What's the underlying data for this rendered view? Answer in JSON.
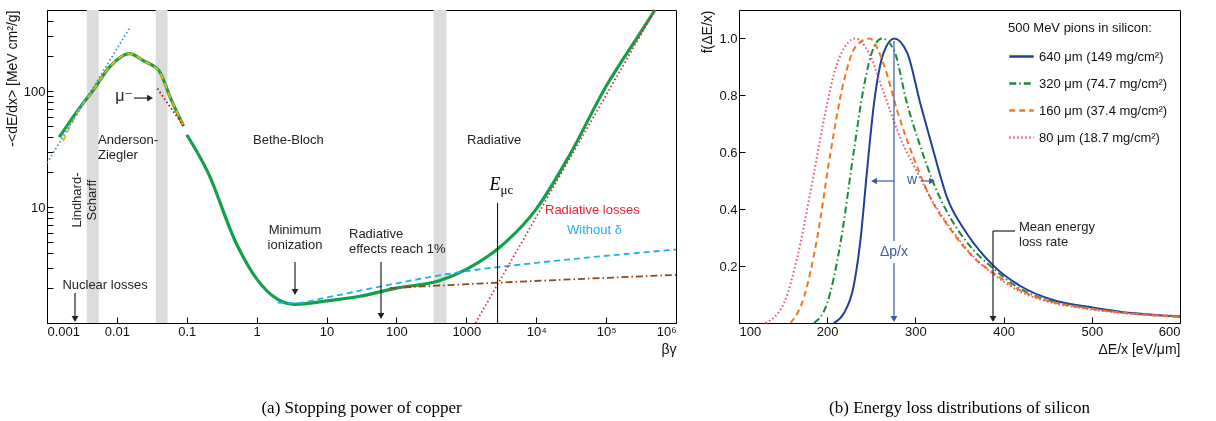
{
  "chart_data": [
    {
      "type": "line",
      "title": "(a) Stopping power of copper",
      "xlabel": "βγ",
      "ylabel": "-<dE/dx> [MeV cm²/g]",
      "log": "xy",
      "xlim": [
        0.001,
        1000000
      ],
      "ylim": [
        1,
        500
      ],
      "xticks": [
        0.001,
        0.01,
        0.1,
        1,
        10,
        100,
        1000,
        {
          "value": 10000,
          "label": "10⁴"
        },
        {
          "value": 100000,
          "label": "10⁵"
        },
        {
          "value": 1000000,
          "label": "10⁶"
        }
      ],
      "yticks": [
        {
          "value": 2,
          "label": null
        },
        {
          "value": 3,
          "label": null
        },
        {
          "value": 4,
          "label": null
        },
        {
          "value": 5,
          "label": null
        },
        {
          "value": 6,
          "label": null
        },
        {
          "value": 7,
          "label": null
        },
        {
          "value": 8,
          "label": null
        },
        {
          "value": 9,
          "label": null
        },
        10,
        {
          "value": 20,
          "label": null
        },
        {
          "value": 30,
          "label": null
        },
        {
          "value": 40,
          "label": null
        },
        {
          "value": 50,
          "label": null
        },
        {
          "value": 60,
          "label": null
        },
        {
          "value": 70,
          "label": null
        },
        {
          "value": 80,
          "label": null
        },
        {
          "value": 90,
          "label": null
        },
        100,
        {
          "value": 200,
          "label": null
        },
        {
          "value": 300,
          "label": null
        },
        {
          "value": 400,
          "label": null
        }
      ],
      "grid": false,
      "legend": false,
      "series": [
        {
          "color": "#13a04a",
          "line_style": "solid",
          "x": [
            0.0015,
            0.003,
            0.0045,
            0.008,
            0.015,
            0.025,
            0.04,
            0.06,
            0.09
          ],
          "values": [
            40,
            73,
            100,
            163,
            210,
            180,
            150,
            84,
            50
          ]
        },
        {
          "color": "#13a04a",
          "line_style": "solid",
          "x": [
            0.1,
            0.2,
            0.5,
            1,
            2,
            3.5,
            10,
            30,
            100,
            400,
            1000,
            3000,
            10000,
            30000,
            100000,
            300000,
            500000
          ],
          "values": [
            42,
            20,
            5,
            2.4,
            1.6,
            1.45,
            1.55,
            1.7,
            2.0,
            2.3,
            2.9,
            4.5,
            9.6,
            28,
            110,
            310,
            500
          ]
        },
        {
          "color": "#f5b400",
          "line_style": "dashed",
          "x": [
            0.0017,
            0.003,
            0.0045,
            0.008,
            0.015,
            0.025,
            0.04,
            0.06,
            0.09
          ],
          "values": [
            37,
            72,
            100,
            163,
            210,
            180,
            148,
            84,
            50
          ]
        },
        {
          "color": "#3d8fd0",
          "line_style": "dotted",
          "x": [
            0.001,
            0.015
          ],
          "values": [
            24,
            345
          ]
        },
        {
          "color": "#a01818",
          "line_style": "dotted",
          "x": [
            0.038,
            0.094
          ],
          "values": [
            105,
            48
          ]
        },
        {
          "name": "Without δ",
          "color": "#1ab0ee",
          "line_style": "dashed",
          "x": [
            2,
            3.5,
            10,
            100,
            1000,
            10000,
            1000000
          ],
          "values": [
            1.5,
            1.48,
            1.66,
            2.2,
            2.8,
            3.3,
            4.3
          ]
        },
        {
          "color": "#8b4a1c",
          "line_style": "dashdot",
          "x": [
            80,
            1000,
            1000000
          ],
          "values": [
            2.0,
            2.16,
            2.6
          ]
        },
        {
          "name": "Radiative losses",
          "color": "#ee2233",
          "line_style": "dotted",
          "x": [
            1350,
            500000
          ],
          "values": [
            1,
            500
          ]
        }
      ],
      "ref_lines": [
        {
          "axis": "x",
          "value": 2800,
          "label": "E$_{μc}$",
          "color": "#000000"
        }
      ],
      "bands": [
        {
          "axis": "x",
          "from": 0.0037,
          "to": 0.0055,
          "color": "#dcdcdc"
        },
        {
          "axis": "x",
          "from": 0.036,
          "to": 0.053,
          "color": "#dcdcdc"
        },
        {
          "axis": "x",
          "from": 340,
          "to": 520,
          "color": "#dcdcdc"
        }
      ],
      "annotations": [
        "Lindhard-\nScharff",
        "Anderson-\nZiegler",
        "Bethe-Bloch",
        "Radiative",
        "Nuclear losses",
        "Minimum\nionization",
        "Radiative\neffects reach 1%",
        {
          "text": "μ⁻",
          "x": 0.034,
          "y": 87
        }
      ]
    },
    {
      "type": "line",
      "title": "(b) Energy loss distributions of silicon",
      "xlabel": "ΔE/x [eV/μm]",
      "ylabel": "f(ΔE/x)",
      "xlim": [
        100,
        600
      ],
      "ylim": [
        0,
        1.1
      ],
      "xticks": [
        100,
        200,
        300,
        400,
        500,
        600
      ],
      "yticks": [
        0.2,
        0.4,
        0.6,
        0.8,
        {
          "value": 1,
          "label": "1.0"
        }
      ],
      "grid": false,
      "legend": "top right",
      "legend_title": "500 MeV pions in silicon:",
      "series": [
        {
          "name": "640 μm (149 mg/cm²)",
          "color": "#1f3f99",
          "line_style": "solid",
          "x": [
            207.5,
            219,
            230,
            238,
            245,
            253,
            264,
            276,
            290.6,
            305.7,
            320.8,
            336,
            355,
            389,
            419,
            457,
            494,
            532,
            600
          ],
          "values": [
            0,
            0.035,
            0.13,
            0.3,
            0.53,
            0.77,
            0.95,
            1.0,
            0.95,
            0.77,
            0.6,
            0.44,
            0.33,
            0.2,
            0.13,
            0.08,
            0.058,
            0.04,
            0.023
          ]
        },
        {
          "name": "320 μm (74.7 mg/cm²)",
          "color": "#1a8a3a",
          "line_style": "dashdot",
          "x": [
            185,
            200,
            215,
            230,
            241.5,
            253,
            262,
            275.5,
            290.6,
            305.7,
            320.8,
            339.6,
            362,
            389,
            419,
            457,
            494,
            532,
            600
          ],
          "values": [
            0,
            0.07,
            0.28,
            0.6,
            0.83,
            0.97,
            1.0,
            0.96,
            0.77,
            0.62,
            0.49,
            0.37,
            0.27,
            0.19,
            0.12,
            0.075,
            0.055,
            0.038,
            0.022
          ]
        },
        {
          "name": "160 μm (37.4 mg/cm²)",
          "color": "#f07820",
          "line_style": "dashed",
          "x": [
            158.5,
            173.6,
            188.7,
            203.8,
            218.9,
            232,
            248,
            264,
            279,
            298,
            317,
            339.6,
            366,
            389,
            419,
            457,
            494,
            532,
            600
          ],
          "values": [
            0,
            0.09,
            0.3,
            0.6,
            0.85,
            0.97,
            1.0,
            0.91,
            0.75,
            0.58,
            0.44,
            0.33,
            0.23,
            0.175,
            0.115,
            0.072,
            0.052,
            0.037,
            0.021
          ]
        },
        {
          "name": "80 μm (18.7 mg/cm²)",
          "color": "#f0506a",
          "line_style": "dotted",
          "x": [
            130,
            151,
            166,
            181,
            196,
            211,
            232,
            247,
            264,
            283,
            302,
            321,
            343,
            370,
            389,
            419,
            457,
            494,
            532,
            600
          ],
          "values": [
            0,
            0.07,
            0.23,
            0.46,
            0.71,
            0.91,
            1.0,
            0.95,
            0.81,
            0.65,
            0.53,
            0.42,
            0.32,
            0.22,
            0.17,
            0.11,
            0.07,
            0.05,
            0.036,
            0.025
          ]
        }
      ],
      "annotations": [
        "w",
        "Δp/x",
        "Mean energy\nloss rate"
      ]
    }
  ]
}
